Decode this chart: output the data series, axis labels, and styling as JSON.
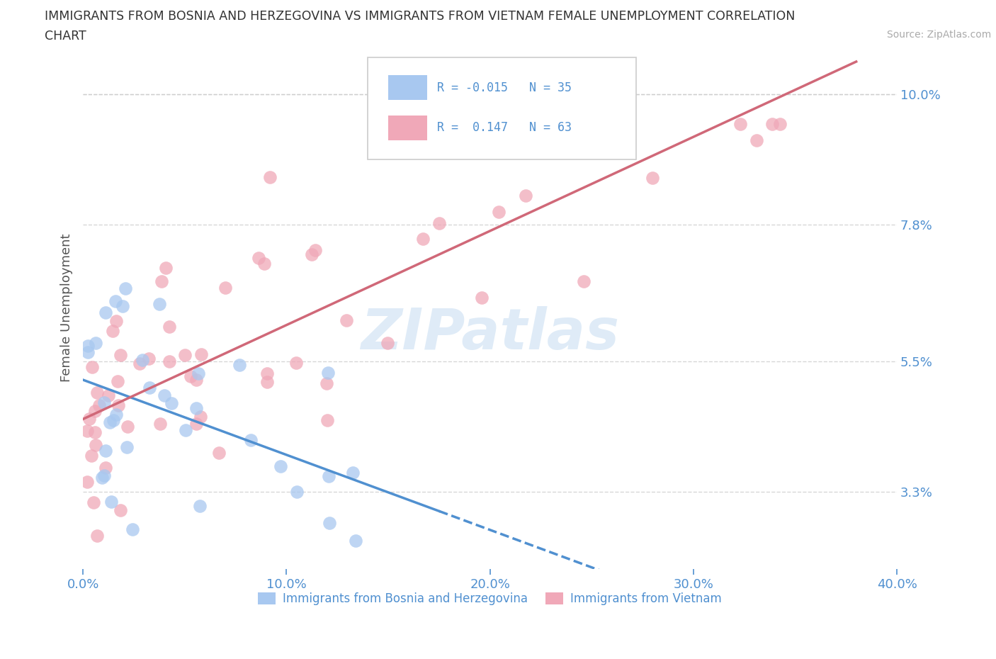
{
  "title_line1": "IMMIGRANTS FROM BOSNIA AND HERZEGOVINA VS IMMIGRANTS FROM VIETNAM FEMALE UNEMPLOYMENT CORRELATION",
  "title_line2": "CHART",
  "source": "Source: ZipAtlas.com",
  "ylabel": "Female Unemployment",
  "xlim": [
    0.0,
    0.4
  ],
  "ylim": [
    0.02,
    0.108
  ],
  "yticks": [
    0.033,
    0.055,
    0.078,
    0.1
  ],
  "ytick_labels": [
    "3.3%",
    "5.5%",
    "7.8%",
    "10.0%"
  ],
  "xticks": [
    0.0,
    0.1,
    0.2,
    0.3,
    0.4
  ],
  "xtick_labels": [
    "0.0%",
    "10.0%",
    "20.0%",
    "30.0%",
    "40.0%"
  ],
  "bosnia_R": -0.015,
  "bosnia_N": 35,
  "vietnam_R": 0.147,
  "vietnam_N": 63,
  "bosnia_color": "#a8c8f0",
  "vietnam_color": "#f0a8b8",
  "bosnia_line_color": "#5090d0",
  "vietnam_line_color": "#d06878",
  "watermark": "ZIPatlas",
  "background_color": "#ffffff",
  "grid_color": "#cccccc",
  "axis_color": "#5090d0",
  "title_color": "#333333",
  "label_color": "#555555"
}
